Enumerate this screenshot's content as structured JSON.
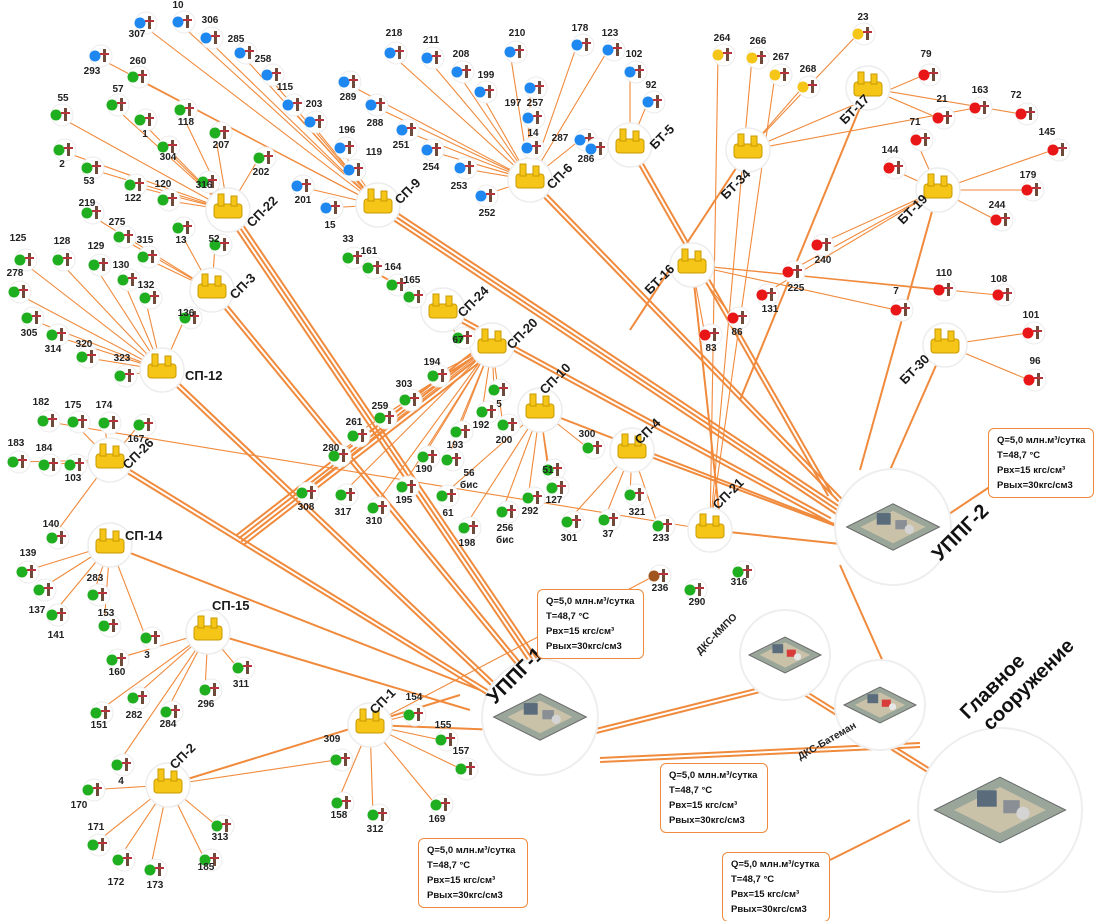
{
  "colors": {
    "pipe": "#f08a3c",
    "well_blue": "#1e88f0",
    "well_green": "#1fae1f",
    "well_yellow": "#f5c518",
    "well_red": "#e81616",
    "well_brown": "#a0561e",
    "station_yellow": "#f5c518"
  },
  "stations": [
    {
      "id": "sp22",
      "label": "СП-22"
    },
    {
      "id": "sp9",
      "label": "СП-9"
    },
    {
      "id": "sp6",
      "label": "СП-6"
    },
    {
      "id": "bt5",
      "label": "БТ-5"
    },
    {
      "id": "bt34",
      "label": "БТ-34"
    },
    {
      "id": "bt17",
      "label": "БТ-17"
    },
    {
      "id": "bt19",
      "label": "БТ-19"
    },
    {
      "id": "sp3",
      "label": "СП-3"
    },
    {
      "id": "sp24",
      "label": "СП-24"
    },
    {
      "id": "sp20",
      "label": "СП-20"
    },
    {
      "id": "bt16",
      "label": "БТ-16"
    },
    {
      "id": "bt30",
      "label": "БТ-30"
    },
    {
      "id": "sp12",
      "label": "СП-12"
    },
    {
      "id": "sp10",
      "label": "СП-10"
    },
    {
      "id": "sp4",
      "label": "СП-4"
    },
    {
      "id": "sp26",
      "label": "СП-26"
    },
    {
      "id": "sp21",
      "label": "СП-21"
    },
    {
      "id": "sp14",
      "label": "СП-14"
    },
    {
      "id": "sp15",
      "label": "СП-15"
    },
    {
      "id": "sp1",
      "label": "СП-1"
    },
    {
      "id": "sp2",
      "label": "СП-2"
    }
  ],
  "facilities": [
    {
      "id": "uppg2",
      "label": "УППГ-2"
    },
    {
      "id": "uppg1",
      "label": "УППГ-1"
    },
    {
      "id": "dks_kmpo",
      "label": "ДКС-КМПО"
    },
    {
      "id": "dks_bateman",
      "label": "ДКС-Батеман"
    },
    {
      "id": "main",
      "label": "Главное сооружение"
    }
  ],
  "wells": [
    {
      "num": "307",
      "color": "blue"
    },
    {
      "num": "10",
      "color": "blue"
    },
    {
      "num": "306",
      "color": "blue"
    },
    {
      "num": "285",
      "color": "blue"
    },
    {
      "num": "293",
      "color": "blue"
    },
    {
      "num": "260",
      "color": "green"
    },
    {
      "num": "258",
      "color": "blue"
    },
    {
      "num": "115",
      "color": "blue"
    },
    {
      "num": "203",
      "color": "blue"
    },
    {
      "num": "218",
      "color": "blue"
    },
    {
      "num": "211",
      "color": "blue"
    },
    {
      "num": "208",
      "color": "blue"
    },
    {
      "num": "210",
      "color": "blue"
    },
    {
      "num": "178",
      "color": "blue"
    },
    {
      "num": "123",
      "color": "blue"
    },
    {
      "num": "102",
      "color": "blue"
    },
    {
      "num": "92",
      "color": "blue"
    },
    {
      "num": "289",
      "color": "blue"
    },
    {
      "num": "199",
      "color": "blue"
    },
    {
      "num": "288",
      "color": "blue"
    },
    {
      "num": "197",
      "color": "blue"
    },
    {
      "num": "251",
      "color": "blue"
    },
    {
      "num": "257",
      "color": "blue"
    },
    {
      "num": "14",
      "color": "blue"
    },
    {
      "num": "287",
      "color": "blue"
    },
    {
      "num": "254",
      "color": "blue"
    },
    {
      "num": "286",
      "color": "blue"
    },
    {
      "num": "253",
      "color": "blue"
    },
    {
      "num": "252",
      "color": "blue"
    },
    {
      "num": "196",
      "color": "blue"
    },
    {
      "num": "119",
      "color": "blue"
    },
    {
      "num": "201",
      "color": "blue"
    },
    {
      "num": "15",
      "color": "blue"
    },
    {
      "num": "55",
      "color": "green"
    },
    {
      "num": "57",
      "color": "green"
    },
    {
      "num": "1",
      "color": "green"
    },
    {
      "num": "118",
      "color": "green"
    },
    {
      "num": "2",
      "color": "green"
    },
    {
      "num": "53",
      "color": "green"
    },
    {
      "num": "304",
      "color": "green"
    },
    {
      "num": "207",
      "color": "green"
    },
    {
      "num": "202",
      "color": "green"
    },
    {
      "num": "122",
      "color": "green"
    },
    {
      "num": "120",
      "color": "green"
    },
    {
      "num": "316",
      "color": "green"
    },
    {
      "num": "219",
      "color": "green"
    },
    {
      "num": "275",
      "color": "green"
    },
    {
      "num": "13",
      "color": "green"
    },
    {
      "num": "315",
      "color": "green"
    },
    {
      "num": "52",
      "color": "green"
    },
    {
      "num": "125",
      "color": "green"
    },
    {
      "num": "128",
      "color": "green"
    },
    {
      "num": "129",
      "color": "green"
    },
    {
      "num": "130",
      "color": "green"
    },
    {
      "num": "278",
      "color": "green"
    },
    {
      "num": "132",
      "color": "green"
    },
    {
      "num": "305",
      "color": "green"
    },
    {
      "num": "314",
      "color": "green"
    },
    {
      "num": "136",
      "color": "green"
    },
    {
      "num": "320",
      "color": "green"
    },
    {
      "num": "323",
      "color": "green"
    },
    {
      "num": "33",
      "color": "green"
    },
    {
      "num": "161",
      "color": "green"
    },
    {
      "num": "164",
      "color": "green"
    },
    {
      "num": "165",
      "color": "green"
    },
    {
      "num": "67",
      "color": "green"
    },
    {
      "num": "194",
      "color": "green"
    },
    {
      "num": "303",
      "color": "green"
    },
    {
      "num": "259",
      "color": "green"
    },
    {
      "num": "261",
      "color": "green"
    },
    {
      "num": "280",
      "color": "green"
    },
    {
      "num": "5",
      "color": "green"
    },
    {
      "num": "192",
      "color": "green"
    },
    {
      "num": "193",
      "color": "green"
    },
    {
      "num": "200",
      "color": "green"
    },
    {
      "num": "190",
      "color": "green"
    },
    {
      "num": "56 бис",
      "color": "green"
    },
    {
      "num": "308",
      "color": "green"
    },
    {
      "num": "317",
      "color": "green"
    },
    {
      "num": "310",
      "color": "green"
    },
    {
      "num": "195",
      "color": "green"
    },
    {
      "num": "61",
      "color": "green"
    },
    {
      "num": "198",
      "color": "green"
    },
    {
      "num": "256 бис",
      "color": "green"
    },
    {
      "num": "292",
      "color": "green"
    },
    {
      "num": "51",
      "color": "green"
    },
    {
      "num": "127",
      "color": "green"
    },
    {
      "num": "300",
      "color": "green"
    },
    {
      "num": "321",
      "color": "green"
    },
    {
      "num": "301",
      "color": "green"
    },
    {
      "num": "37",
      "color": "green"
    },
    {
      "num": "233",
      "color": "green"
    },
    {
      "num": "182",
      "color": "green"
    },
    {
      "num": "175",
      "color": "green"
    },
    {
      "num": "174",
      "color": "green"
    },
    {
      "num": "167",
      "color": "green"
    },
    {
      "num": "183",
      "color": "green"
    },
    {
      "num": "184",
      "color": "green"
    },
    {
      "num": "103",
      "color": "green"
    },
    {
      "num": "140",
      "color": "green"
    },
    {
      "num": "139",
      "color": "green"
    },
    {
      "num": "283",
      "color": "green"
    },
    {
      "num": "137",
      "color": "green"
    },
    {
      "num": "153",
      "color": "green"
    },
    {
      "num": "141",
      "color": "green"
    },
    {
      "num": "3",
      "color": "green"
    },
    {
      "num": "160",
      "color": "green"
    },
    {
      "num": "311",
      "color": "green"
    },
    {
      "num": "282",
      "color": "green"
    },
    {
      "num": "284",
      "color": "green"
    },
    {
      "num": "296",
      "color": "green"
    },
    {
      "num": "151",
      "color": "green"
    },
    {
      "num": "4",
      "color": "green"
    },
    {
      "num": "170",
      "color": "green"
    },
    {
      "num": "171",
      "color": "green"
    },
    {
      "num": "313",
      "color": "green"
    },
    {
      "num": "172",
      "color": "green"
    },
    {
      "num": "173",
      "color": "green"
    },
    {
      "num": "185",
      "color": "green"
    },
    {
      "num": "309",
      "color": "green"
    },
    {
      "num": "154",
      "color": "green"
    },
    {
      "num": "155",
      "color": "green"
    },
    {
      "num": "157",
      "color": "green"
    },
    {
      "num": "158",
      "color": "green"
    },
    {
      "num": "312",
      "color": "green"
    },
    {
      "num": "169",
      "color": "green"
    },
    {
      "num": "236",
      "color": "brown"
    },
    {
      "num": "290",
      "color": "green"
    },
    {
      "num": "316",
      "color": "green"
    },
    {
      "num": "264",
      "color": "yellow"
    },
    {
      "num": "266",
      "color": "yellow"
    },
    {
      "num": "267",
      "color": "yellow"
    },
    {
      "num": "268",
      "color": "yellow"
    },
    {
      "num": "23",
      "color": "yellow"
    },
    {
      "num": "79",
      "color": "red"
    },
    {
      "num": "163",
      "color": "red"
    },
    {
      "num": "72",
      "color": "red"
    },
    {
      "num": "21",
      "color": "red"
    },
    {
      "num": "71",
      "color": "red"
    },
    {
      "num": "145",
      "color": "red"
    },
    {
      "num": "144",
      "color": "red"
    },
    {
      "num": "179",
      "color": "red"
    },
    {
      "num": "244",
      "color": "red"
    },
    {
      "num": "240",
      "color": "red"
    },
    {
      "num": "225",
      "color": "red"
    },
    {
      "num": "131",
      "color": "red"
    },
    {
      "num": "86",
      "color": "red"
    },
    {
      "num": "83",
      "color": "red"
    },
    {
      "num": "7",
      "color": "red"
    },
    {
      "num": "110",
      "color": "red"
    },
    {
      "num": "108",
      "color": "red"
    },
    {
      "num": "101",
      "color": "red"
    },
    {
      "num": "96",
      "color": "red"
    }
  ],
  "info_boxes": [
    {
      "id": "uppg2",
      "lines": [
        "Q=5,0 млн.м³/сутка",
        "T=48,7 °C",
        "Pвх=15 кгс/см³",
        "Pвых=30кгс/см3"
      ]
    },
    {
      "id": "kmpo",
      "lines": [
        "Q=5,0 млн.м³/сутка",
        "T=48,7 °C",
        "Pвх=15 кгс/см³",
        "Pвых=30кгс/см3"
      ]
    },
    {
      "id": "uppg1",
      "lines": [
        "Q=5,0 млн.м³/сутка",
        "T=48,7 °C",
        "Pвх=15 кгс/см³",
        "Pвых=30кгс/см3"
      ]
    },
    {
      "id": "bateman",
      "lines": [
        "Q=5,0 млн.м³/сутка",
        "T=48,7 °C",
        "Pвх=15 кгс/см³",
        "Pвых=30кгс/см3"
      ]
    },
    {
      "id": "main",
      "lines": [
        "Q=5,0 млн.м³/сутка",
        "T=48,7 °C",
        "Pвх=15 кгс/см³",
        "Pвых=30кгс/см3"
      ]
    }
  ]
}
